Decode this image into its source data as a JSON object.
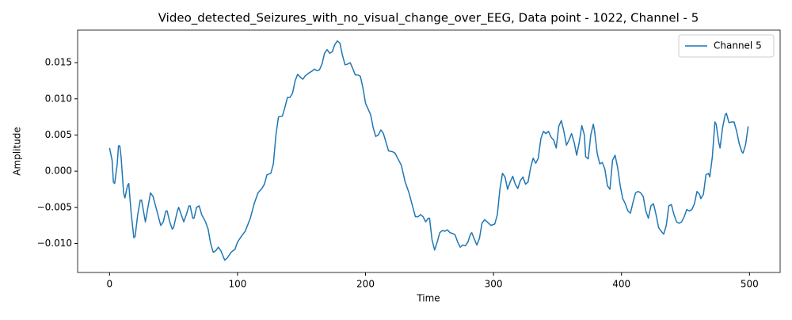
{
  "chart_data": {
    "type": "line",
    "title": "Video_detected_Seizures_with_no_visual_change_over_EEG, Data point - 1022, Channel - 5",
    "x_label": "Time",
    "y_label": "Amplitude",
    "legend_position": "upper right",
    "x": [
      0,
      2,
      3,
      4,
      6,
      7,
      8,
      9,
      11,
      12,
      14,
      15,
      17,
      19,
      20,
      22,
      24,
      25,
      27,
      28,
      30,
      32,
      34,
      37,
      40,
      42,
      44,
      45,
      47,
      49,
      50,
      53,
      54,
      56,
      58,
      60,
      62,
      63,
      65,
      66,
      68,
      70,
      72,
      75,
      77,
      79,
      81,
      83,
      85,
      87,
      90,
      92,
      95,
      98,
      100,
      103,
      106,
      110,
      113,
      116,
      119,
      121,
      123,
      126,
      128,
      130,
      132,
      135,
      137,
      139,
      141,
      143,
      145,
      147,
      149,
      151,
      153,
      156,
      158,
      160,
      162,
      164,
      166,
      168,
      170,
      172,
      174,
      176,
      178,
      180,
      182,
      184,
      186,
      188,
      190,
      192,
      194,
      196,
      198,
      200,
      202,
      204,
      206,
      208,
      210,
      212,
      214,
      216,
      218,
      221,
      223,
      226,
      228,
      231,
      234,
      237,
      239,
      241,
      243,
      245,
      247,
      249,
      250,
      252,
      254,
      256,
      258,
      260,
      262,
      264,
      266,
      268,
      270,
      272,
      274,
      276,
      278,
      280,
      282,
      283,
      286,
      287,
      289,
      291,
      293,
      295,
      298,
      301,
      303,
      305,
      307,
      309,
      311,
      313,
      315,
      317,
      319,
      321,
      323,
      325,
      327,
      329,
      331,
      333,
      335,
      337,
      339,
      341,
      343,
      345,
      347,
      349,
      351,
      353,
      355,
      357,
      359,
      361,
      363,
      365,
      367,
      369,
      371,
      372,
      374,
      376,
      378,
      379,
      381,
      383,
      385,
      387,
      389,
      391,
      393,
      395,
      397,
      399,
      401,
      403,
      405,
      407,
      409,
      411,
      413,
      415,
      417,
      419,
      421,
      423,
      425,
      427,
      429,
      431,
      433,
      435,
      437,
      439,
      441,
      443,
      445,
      447,
      449,
      451,
      453,
      455,
      457,
      459,
      461,
      462,
      464,
      466,
      468,
      469,
      471,
      473,
      474,
      476,
      477,
      479,
      481,
      482,
      484,
      486,
      488,
      490,
      492,
      494,
      495,
      497,
      499
    ],
    "series": [
      {
        "name": "Channel 5",
        "color": "#1f77b4",
        "values": [
          0.0032,
          0.0015,
          -0.0015,
          -0.0017,
          0.001,
          0.0035,
          0.0035,
          0.002,
          -0.003,
          -0.0037,
          -0.002,
          -0.0017,
          -0.006,
          -0.0092,
          -0.009,
          -0.006,
          -0.004,
          -0.004,
          -0.006,
          -0.007,
          -0.005,
          -0.003,
          -0.0035,
          -0.0055,
          -0.0075,
          -0.007,
          -0.0055,
          -0.0055,
          -0.007,
          -0.008,
          -0.0078,
          -0.0055,
          -0.005,
          -0.006,
          -0.007,
          -0.006,
          -0.0048,
          -0.0048,
          -0.0065,
          -0.0065,
          -0.005,
          -0.0048,
          -0.006,
          -0.007,
          -0.008,
          -0.01,
          -0.0112,
          -0.011,
          -0.0105,
          -0.011,
          -0.0123,
          -0.012,
          -0.0112,
          -0.0108,
          -0.0098,
          -0.009,
          -0.0083,
          -0.0065,
          -0.0045,
          -0.003,
          -0.0024,
          -0.0018,
          -0.0005,
          -0.0003,
          0.001,
          0.005,
          0.0075,
          0.0076,
          0.0088,
          0.0102,
          0.0102,
          0.0108,
          0.0125,
          0.0134,
          0.013,
          0.0127,
          0.0132,
          0.0136,
          0.0138,
          0.0141,
          0.0139,
          0.014,
          0.0148,
          0.0163,
          0.0168,
          0.0163,
          0.0165,
          0.0175,
          0.018,
          0.0177,
          0.016,
          0.0147,
          0.0148,
          0.015,
          0.0142,
          0.0133,
          0.0133,
          0.0131,
          0.0115,
          0.0094,
          0.0086,
          0.0078,
          0.006,
          0.0048,
          0.005,
          0.0057,
          0.0052,
          0.004,
          0.0028,
          0.0027,
          0.0025,
          0.0015,
          0.0008,
          -0.0015,
          -0.003,
          -0.005,
          -0.0063,
          -0.0063,
          -0.006,
          -0.0063,
          -0.007,
          -0.0065,
          -0.0065,
          -0.0095,
          -0.0109,
          -0.0098,
          -0.0085,
          -0.0082,
          -0.0083,
          -0.0081,
          -0.0085,
          -0.0086,
          -0.0088,
          -0.0098,
          -0.0105,
          -0.0102,
          -0.0103,
          -0.0098,
          -0.0087,
          -0.0085,
          -0.0098,
          -0.0102,
          -0.0093,
          -0.0072,
          -0.0067,
          -0.007,
          -0.0075,
          -0.0073,
          -0.006,
          -0.0025,
          -0.0003,
          -0.0008,
          -0.0025,
          -0.0015,
          -0.0007,
          -0.0018,
          -0.0024,
          -0.0013,
          -0.0008,
          -0.0018,
          -0.0015,
          0.0005,
          0.0018,
          0.0011,
          0.0018,
          0.0045,
          0.0055,
          0.0052,
          0.0055,
          0.0047,
          0.0043,
          0.0032,
          0.0062,
          0.007,
          0.0055,
          0.0036,
          0.0043,
          0.0052,
          0.004,
          0.0022,
          0.004,
          0.0063,
          0.005,
          0.002,
          0.0017,
          0.005,
          0.0065,
          0.0055,
          0.0025,
          0.001,
          0.0012,
          0.0003,
          -0.002,
          -0.0025,
          0.0015,
          0.0022,
          0.0005,
          -0.002,
          -0.0038,
          -0.0045,
          -0.0055,
          -0.0058,
          -0.0043,
          -0.003,
          -0.0028,
          -0.003,
          -0.0035,
          -0.0055,
          -0.0065,
          -0.0048,
          -0.0045,
          -0.006,
          -0.0078,
          -0.0083,
          -0.0087,
          -0.0075,
          -0.0048,
          -0.0046,
          -0.006,
          -0.007,
          -0.0072,
          -0.007,
          -0.0063,
          -0.0053,
          -0.0055,
          -0.0053,
          -0.0045,
          -0.0028,
          -0.0032,
          -0.0038,
          -0.0032,
          -0.0005,
          -0.0003,
          -0.0008,
          0.002,
          0.0068,
          0.0065,
          0.004,
          0.0032,
          0.006,
          0.0078,
          0.008,
          0.0067,
          0.0068,
          0.0068,
          0.0055,
          0.0038,
          0.0027,
          0.0025,
          0.0037,
          0.0062
        ]
      }
    ],
    "xlim": [
      -24.95,
      523.95
    ],
    "xticks": [
      0,
      100,
      200,
      300,
      400,
      500
    ],
    "ylim": [
      -0.014,
      0.0195
    ],
    "yticks": [
      {
        "value": -0.01,
        "label": "−0.010"
      },
      {
        "value": -0.005,
        "label": "−0.005"
      },
      {
        "value": 0,
        "label": "0.000"
      },
      {
        "value": 0.005,
        "label": "0.005"
      },
      {
        "value": 0.01,
        "label": "0.010"
      },
      {
        "value": 0.015,
        "label": "0.015"
      }
    ],
    "grid": false
  }
}
